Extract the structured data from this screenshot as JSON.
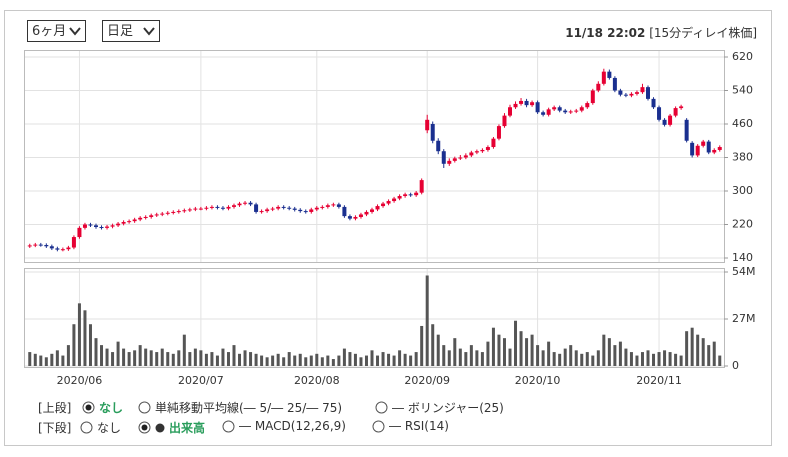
{
  "controls": {
    "period": "6ヶ月",
    "interval": "日足",
    "timestamp": "11/18 22:02",
    "delay_note": "[15分ディレイ株価]"
  },
  "chart_data": {
    "type": "candlestick",
    "grid": true,
    "up_color": "#e60033",
    "down_color": "#1a2f8f",
    "categories": [
      null,
      null,
      null,
      null,
      null,
      null,
      null,
      null,
      null,
      "2020/06",
      null,
      null,
      null,
      null,
      null,
      null,
      null,
      null,
      null,
      null,
      null,
      null,
      null,
      null,
      null,
      null,
      null,
      null,
      null,
      null,
      null,
      "2020/07",
      null,
      null,
      null,
      null,
      null,
      null,
      null,
      null,
      null,
      null,
      null,
      null,
      null,
      null,
      null,
      null,
      null,
      null,
      null,
      null,
      "2020/08",
      null,
      null,
      null,
      null,
      null,
      null,
      null,
      null,
      null,
      null,
      null,
      null,
      null,
      null,
      null,
      null,
      null,
      null,
      null,
      "2020/09",
      null,
      null,
      null,
      null,
      null,
      null,
      null,
      null,
      null,
      null,
      null,
      null,
      null,
      null,
      null,
      null,
      null,
      null,
      null,
      "2020/10",
      null,
      null,
      null,
      null,
      null,
      null,
      null,
      null,
      null,
      null,
      null,
      null,
      null,
      null,
      null,
      null,
      null,
      null,
      null,
      null,
      null,
      "2020/11",
      null,
      null,
      null,
      null,
      null,
      null,
      null,
      null,
      null,
      null,
      null
    ],
    "open": [
      168,
      170,
      172,
      171,
      168,
      163,
      160,
      161,
      165,
      190,
      212,
      220,
      218,
      214,
      212,
      215,
      218,
      222,
      226,
      228,
      232,
      236,
      238,
      242,
      244,
      246,
      248,
      250,
      252,
      254,
      256,
      258,
      258,
      260,
      262,
      260,
      258,
      262,
      266,
      270,
      272,
      268,
      250,
      252,
      256,
      258,
      262,
      260,
      258,
      255,
      252,
      250,
      256,
      260,
      262,
      266,
      268,
      262,
      240,
      234,
      238,
      244,
      250,
      256,
      264,
      270,
      276,
      282,
      288,
      292,
      290,
      296,
      445,
      460,
      420,
      395,
      365,
      372,
      378,
      380,
      385,
      392,
      395,
      398,
      405,
      425,
      455,
      480,
      500,
      508,
      515,
      505,
      512,
      488,
      482,
      495,
      500,
      492,
      488,
      490,
      492,
      500,
      510,
      540,
      556,
      585,
      570,
      540,
      530,
      528,
      532,
      536,
      548,
      520,
      500,
      470,
      458,
      480,
      498,
      470,
      415,
      385,
      408,
      418,
      392,
      398
    ],
    "high": [
      174,
      176,
      176,
      175,
      172,
      167,
      165,
      169,
      194,
      216,
      224,
      224,
      222,
      218,
      219,
      222,
      226,
      230,
      232,
      236,
      240,
      242,
      246,
      248,
      250,
      252,
      254,
      256,
      258,
      260,
      262,
      262,
      264,
      266,
      266,
      264,
      266,
      270,
      274,
      276,
      276,
      272,
      256,
      260,
      262,
      266,
      266,
      264,
      262,
      259,
      256,
      260,
      264,
      266,
      270,
      272,
      272,
      266,
      244,
      242,
      248,
      254,
      260,
      268,
      274,
      280,
      286,
      292,
      296,
      296,
      300,
      330,
      482,
      466,
      426,
      400,
      378,
      382,
      386,
      390,
      396,
      399,
      402,
      409,
      429,
      459,
      486,
      506,
      514,
      522,
      520,
      516,
      516,
      492,
      499,
      504,
      504,
      496,
      494,
      496,
      504,
      514,
      544,
      562,
      592,
      590,
      574,
      544,
      534,
      536,
      540,
      556,
      552,
      524,
      504,
      474,
      484,
      502,
      506,
      474,
      419,
      412,
      422,
      422,
      402,
      409
    ],
    "low": [
      164,
      166,
      167,
      164,
      159,
      156,
      156,
      157,
      161,
      186,
      208,
      214,
      210,
      208,
      208,
      211,
      214,
      218,
      222,
      224,
      228,
      232,
      234,
      238,
      240,
      242,
      244,
      246,
      248,
      250,
      252,
      254,
      254,
      256,
      256,
      254,
      254,
      258,
      262,
      266,
      264,
      246,
      246,
      248,
      252,
      254,
      256,
      254,
      251,
      248,
      246,
      246,
      252,
      256,
      258,
      262,
      258,
      236,
      230,
      230,
      234,
      240,
      246,
      252,
      260,
      266,
      272,
      278,
      284,
      286,
      286,
      292,
      438,
      414,
      388,
      355,
      360,
      368,
      374,
      376,
      381,
      388,
      391,
      394,
      401,
      421,
      451,
      476,
      496,
      504,
      500,
      501,
      484,
      478,
      478,
      491,
      488,
      484,
      484,
      486,
      488,
      496,
      506,
      536,
      552,
      566,
      536,
      526,
      524,
      524,
      528,
      532,
      516,
      496,
      466,
      454,
      454,
      476,
      494,
      416,
      380,
      381,
      404,
      388,
      388,
      394
    ],
    "close": [
      170,
      172,
      171,
      168,
      163,
      160,
      161,
      165,
      190,
      212,
      220,
      218,
      214,
      212,
      215,
      218,
      222,
      226,
      228,
      232,
      236,
      238,
      242,
      244,
      246,
      248,
      250,
      252,
      254,
      256,
      258,
      258,
      260,
      262,
      260,
      258,
      262,
      266,
      270,
      272,
      268,
      250,
      252,
      256,
      258,
      262,
      260,
      258,
      255,
      252,
      250,
      256,
      260,
      262,
      266,
      268,
      262,
      240,
      234,
      238,
      244,
      250,
      256,
      264,
      270,
      276,
      282,
      288,
      292,
      290,
      296,
      326,
      470,
      420,
      395,
      365,
      372,
      378,
      380,
      385,
      392,
      395,
      398,
      405,
      425,
      455,
      480,
      500,
      508,
      515,
      505,
      512,
      488,
      482,
      495,
      500,
      492,
      488,
      490,
      492,
      500,
      510,
      540,
      556,
      585,
      570,
      540,
      530,
      528,
      532,
      536,
      548,
      520,
      500,
      470,
      458,
      480,
      498,
      502,
      420,
      385,
      408,
      418,
      392,
      398,
      405
    ],
    "ylim": [
      140,
      620
    ],
    "yticks": [
      620,
      540,
      460,
      380,
      300,
      220,
      140
    ],
    "volume": {
      "color": "#555555",
      "values": [
        8,
        7,
        6,
        5,
        7,
        9,
        6,
        12,
        24,
        36,
        32,
        24,
        16,
        12,
        10,
        8,
        14,
        10,
        8,
        9,
        12,
        10,
        9,
        8,
        10,
        8,
        7,
        9,
        18,
        8,
        10,
        9,
        7,
        8,
        6,
        10,
        8,
        12,
        7,
        9,
        8,
        7,
        6,
        5,
        6,
        7,
        5,
        8,
        6,
        7,
        5,
        6,
        7,
        5,
        6,
        4,
        6,
        10,
        8,
        7,
        5,
        6,
        9,
        6,
        8,
        7,
        6,
        9,
        7,
        6,
        8,
        23,
        52,
        24,
        18,
        12,
        9,
        16,
        10,
        8,
        12,
        9,
        8,
        14,
        22,
        18,
        16,
        10,
        26,
        20,
        16,
        18,
        12,
        9,
        14,
        8,
        7,
        10,
        12,
        9,
        7,
        8,
        6,
        9,
        18,
        16,
        12,
        14,
        10,
        8,
        6,
        8,
        9,
        7,
        8,
        9,
        8,
        7,
        6,
        20,
        22,
        18,
        16,
        12,
        14,
        6
      ],
      "ylim": [
        0,
        54
      ],
      "yticks": [
        {
          "value": 54,
          "label": "54M"
        },
        {
          "value": 27,
          "label": "27M"
        },
        0
      ]
    }
  },
  "indicators": {
    "upper": {
      "label": "[上段]",
      "selected": 0,
      "options": [
        "なし",
        "単純移動平均線(― 5/― 25/― 75)",
        "― ボリンジャー(25)"
      ]
    },
    "lower": {
      "label": "[下段]",
      "selected": 1,
      "options": [
        "なし",
        "出来高",
        "― MACD(12,26,9)",
        "― RSI(14)"
      ]
    }
  }
}
